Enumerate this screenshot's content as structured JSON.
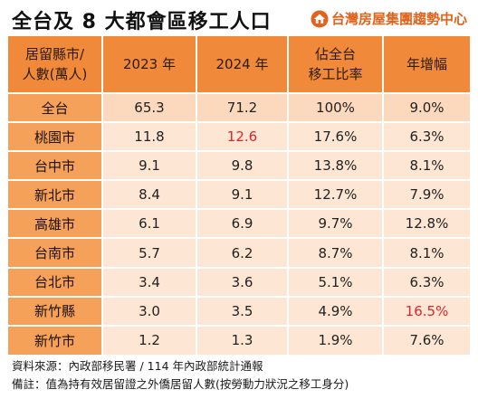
{
  "title": "全台及 8 大都會區移工人口",
  "brand": {
    "name": "台灣房屋集團趨勢中心",
    "logo_icon": "house-logo-icon",
    "color": "#e2631b"
  },
  "table": {
    "headers": [
      [
        "居留縣市/",
        "人數(萬人)"
      ],
      [
        "2023 年"
      ],
      [
        "2024 年"
      ],
      [
        "佔全台",
        "移工比率"
      ],
      [
        "年增幅"
      ]
    ],
    "rows": [
      {
        "name": "全台",
        "v2023": "65.3",
        "v2024": "71.2",
        "ratio": "100%",
        "growth": "9.0%"
      },
      {
        "name": "桃園市",
        "v2023": "11.8",
        "v2024": "12.6",
        "ratio": "17.6%",
        "growth": "6.3%",
        "highlight": "v2024"
      },
      {
        "name": "台中市",
        "v2023": "9.1",
        "v2024": "9.8",
        "ratio": "13.8%",
        "growth": "8.1%"
      },
      {
        "name": "新北市",
        "v2023": "8.4",
        "v2024": "9.1",
        "ratio": "12.7%",
        "growth": "7.9%"
      },
      {
        "name": "高雄市",
        "v2023": "6.1",
        "v2024": "6.9",
        "ratio": "9.7%",
        "growth": "12.8%"
      },
      {
        "name": "台南市",
        "v2023": "5.7",
        "v2024": "6.2",
        "ratio": "8.7%",
        "growth": "8.1%"
      },
      {
        "name": "台北市",
        "v2023": "3.4",
        "v2024": "3.6",
        "ratio": "5.1%",
        "growth": "6.3%"
      },
      {
        "name": "新竹縣",
        "v2023": "3.0",
        "v2024": "3.5",
        "ratio": "4.9%",
        "growth": "16.5%",
        "highlight": "growth"
      },
      {
        "name": "新竹市",
        "v2023": "1.2",
        "v2024": "1.3",
        "ratio": "1.9%",
        "growth": "7.6%"
      }
    ],
    "colors": {
      "header": "#f08a3a",
      "name_cell": "#f5a15a",
      "value_cell": "#fde6d3",
      "highlight_text": "#d9262e"
    }
  },
  "notes": {
    "source": "資料來源：內政部移民署 / 114 年內政部統計通報",
    "remark": "備註：值為持有效居留證之外僑居留人數(按勞動力狀況之移工身分)"
  }
}
